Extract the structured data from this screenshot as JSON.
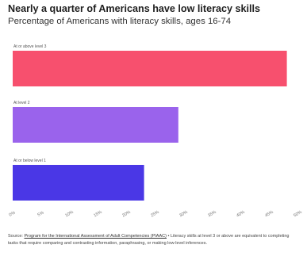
{
  "chart_data": {
    "type": "bar",
    "orientation": "horizontal",
    "title": "Nearly a quarter of Americans have low literacy skills",
    "subtitle": "Percentage of Americans with literacy skills, ages 16-74",
    "categories": [
      "At or above level 3",
      "At level 2",
      "At or below level 1"
    ],
    "values": [
      48,
      29,
      23
    ],
    "colors": [
      "#f7506e",
      "#9a63ec",
      "#4a37e6"
    ],
    "xlim": [
      0,
      50
    ],
    "xticks": [
      "0%",
      "5%",
      "10%",
      "15%",
      "20%",
      "25%",
      "30%",
      "35%",
      "40%",
      "45%",
      "50%"
    ],
    "grid": false,
    "legend": "none"
  },
  "footer": {
    "source_prefix": "Source:",
    "source_link": "Program for the International Assessment of Adult Competencies (PIAAC)",
    "note": "• Literacy skills at level 3 or above are equivalent to completing tasks that require comparing and contrasting information, paraphrasing, or making low-level inferences."
  }
}
